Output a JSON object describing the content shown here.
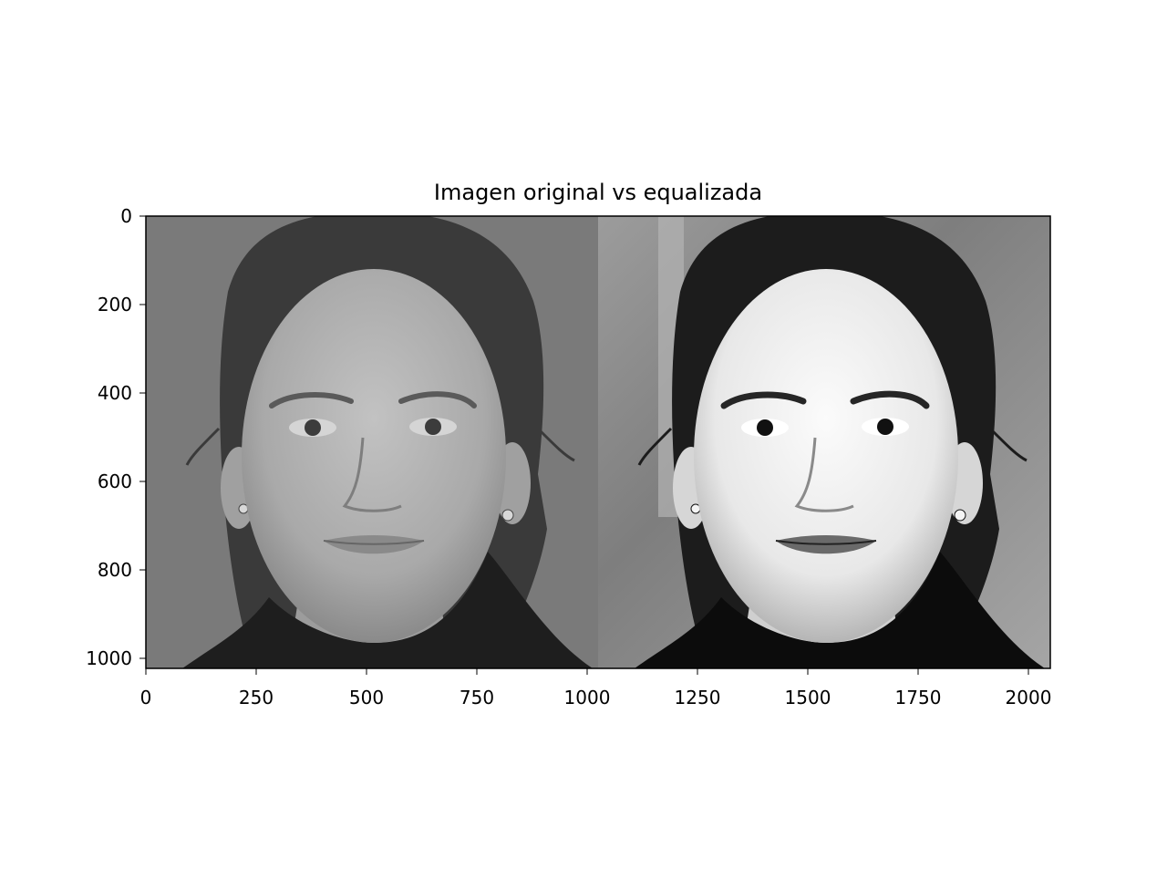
{
  "figure": {
    "title": "Imagen original vs equalizada",
    "x_ticks": [
      "0",
      "250",
      "500",
      "750",
      "1000",
      "1250",
      "1500",
      "1750",
      "2000"
    ],
    "y_ticks": [
      "0",
      "200",
      "400",
      "600",
      "800",
      "1000"
    ],
    "panels": [
      {
        "name": "original",
        "tone": "low-contrast grayscale"
      },
      {
        "name": "equalized",
        "tone": "high-contrast grayscale"
      }
    ],
    "colors": {
      "background": "#ffffff",
      "axes": "#000000",
      "original_bg": "#7a7a7a",
      "equalized_bg": "#8c8c8c",
      "hair": "#2a2a2a",
      "scarf": "#141414"
    }
  }
}
